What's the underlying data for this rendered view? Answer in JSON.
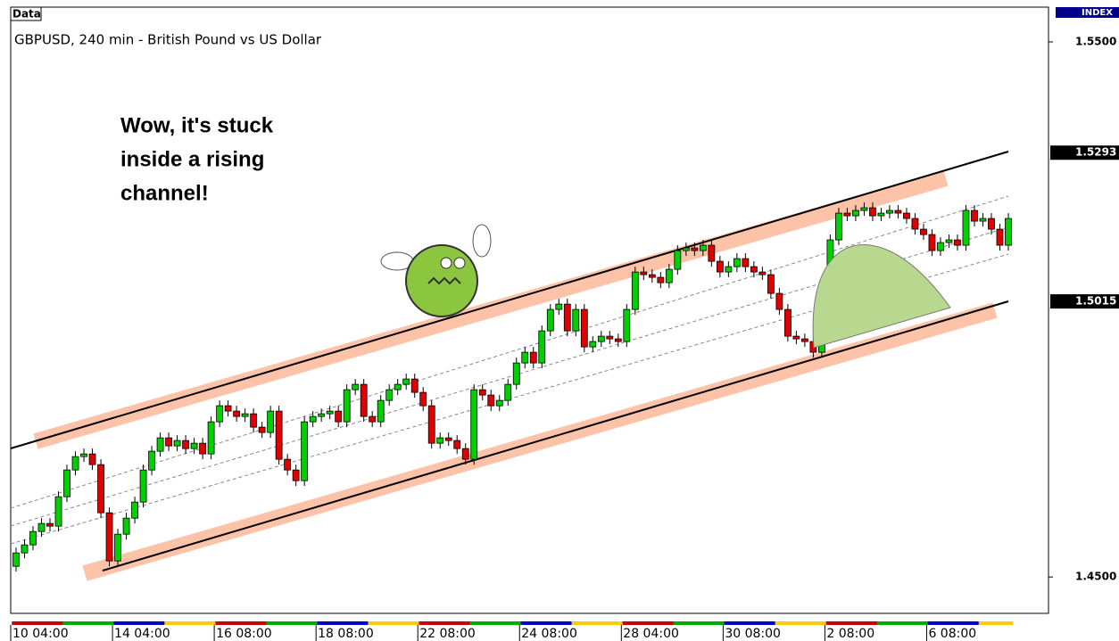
{
  "chart_data": {
    "type": "candlestick",
    "badge": "Data",
    "title": "GBPUSD, 240 min - British Pound vs US Dollar",
    "index_label": "INDEX",
    "annotation": [
      "Wow, it's stuck",
      "inside a rising",
      "channel!"
    ],
    "categories": [
      "10 04:00",
      null,
      null,
      null,
      null,
      null,
      null,
      null,
      null,
      null,
      null,
      null,
      "14 04:00",
      null,
      null,
      null,
      null,
      null,
      null,
      null,
      null,
      null,
      null,
      null,
      "16 08:00",
      null,
      null,
      null,
      null,
      null,
      null,
      null,
      null,
      null,
      null,
      null,
      "18 08:00",
      null,
      null,
      null,
      null,
      null,
      null,
      null,
      null,
      null,
      null,
      null,
      "22 08:00",
      null,
      null,
      null,
      null,
      null,
      null,
      null,
      null,
      null,
      null,
      null,
      "24 08:00",
      null,
      null,
      null,
      null,
      null,
      null,
      null,
      null,
      null,
      null,
      null,
      "28 04:00",
      null,
      null,
      null,
      null,
      null,
      null,
      null,
      null,
      null,
      null,
      null,
      "30 08:00",
      null,
      null,
      null,
      null,
      null,
      null,
      null,
      null,
      null,
      null,
      null,
      "2 08:00",
      null,
      null,
      null,
      null,
      null,
      null,
      null,
      null,
      null,
      null,
      null,
      "6 08:00",
      null,
      null,
      null,
      null,
      null,
      null,
      null,
      null,
      null
    ],
    "open": [
      1.452,
      1.4545,
      1.456,
      1.4585,
      1.46,
      1.4595,
      1.465,
      1.47,
      1.4725,
      1.473,
      1.471,
      1.462,
      1.453,
      1.458,
      1.461,
      1.464,
      1.47,
      1.4735,
      1.476,
      1.4745,
      1.4755,
      1.474,
      1.475,
      1.473,
      1.479,
      1.482,
      1.481,
      1.48,
      1.4805,
      1.478,
      1.477,
      1.481,
      1.472,
      1.47,
      1.468,
      1.479,
      1.48,
      1.4805,
      1.481,
      1.479,
      1.485,
      1.486,
      1.48,
      1.479,
      1.483,
      1.485,
      1.486,
      1.487,
      1.4845,
      1.482,
      1.475,
      1.476,
      1.4755,
      1.474,
      1.472,
      1.485,
      1.484,
      1.482,
      1.483,
      1.486,
      1.49,
      1.492,
      1.49,
      1.496,
      1.5,
      1.501,
      1.496,
      1.5,
      1.493,
      1.494,
      1.495,
      1.4945,
      1.494,
      1.5,
      1.507,
      1.5065,
      1.506,
      1.505,
      1.5075,
      1.511,
      1.5115,
      1.511,
      1.512,
      1.509,
      1.507,
      1.508,
      1.5095,
      1.508,
      1.507,
      1.5065,
      1.503,
      1.5,
      1.495,
      1.4945,
      1.494,
      1.492,
      1.498,
      1.513,
      1.518,
      1.5175,
      1.5185,
      1.519,
      1.5175,
      1.518,
      1.5185,
      1.518,
      1.517,
      1.515,
      1.514,
      1.511,
      1.5125,
      1.513,
      1.512,
      1.5185,
      1.5165,
      1.517,
      1.515,
      1.512
    ],
    "high": [
      1.4555,
      1.457,
      1.4595,
      1.461,
      1.461,
      1.466,
      1.471,
      1.4735,
      1.474,
      1.474,
      1.472,
      1.463,
      1.459,
      1.462,
      1.465,
      1.471,
      1.4745,
      1.477,
      1.477,
      1.4765,
      1.4765,
      1.476,
      1.476,
      1.48,
      1.483,
      1.483,
      1.482,
      1.4815,
      1.4815,
      1.479,
      1.482,
      1.482,
      1.473,
      1.471,
      1.48,
      1.481,
      1.4815,
      1.482,
      1.482,
      1.486,
      1.487,
      1.487,
      1.481,
      1.484,
      1.486,
      1.487,
      1.488,
      1.488,
      1.4855,
      1.483,
      1.477,
      1.477,
      1.4765,
      1.475,
      1.486,
      1.486,
      1.485,
      1.484,
      1.487,
      1.491,
      1.493,
      1.493,
      1.497,
      1.501,
      1.502,
      1.502,
      1.501,
      1.501,
      1.495,
      1.496,
      1.496,
      1.4955,
      1.501,
      1.508,
      1.508,
      1.5075,
      1.507,
      1.5085,
      1.512,
      1.5125,
      1.5125,
      1.513,
      1.513,
      1.51,
      1.509,
      1.5105,
      1.5105,
      1.509,
      1.508,
      1.5075,
      1.504,
      1.501,
      1.496,
      1.4955,
      1.495,
      1.499,
      1.514,
      1.519,
      1.519,
      1.5195,
      1.52,
      1.52,
      1.519,
      1.5195,
      1.5195,
      1.519,
      1.518,
      1.516,
      1.515,
      1.5135,
      1.514,
      1.514,
      1.5195,
      1.5195,
      1.518,
      1.518,
      1.516,
      1.518
    ],
    "low": [
      1.451,
      1.4535,
      1.455,
      1.4575,
      1.4585,
      1.4585,
      1.464,
      1.469,
      1.4715,
      1.47,
      1.461,
      1.452,
      1.452,
      1.457,
      1.46,
      1.463,
      1.469,
      1.4725,
      1.4735,
      1.4735,
      1.473,
      1.473,
      1.472,
      1.472,
      1.478,
      1.48,
      1.479,
      1.479,
      1.477,
      1.476,
      1.476,
      1.471,
      1.469,
      1.467,
      1.467,
      1.478,
      1.479,
      1.4795,
      1.478,
      1.478,
      1.484,
      1.479,
      1.478,
      1.478,
      1.482,
      1.484,
      1.485,
      1.4835,
      1.481,
      1.474,
      1.474,
      1.4745,
      1.473,
      1.471,
      1.471,
      1.483,
      1.481,
      1.481,
      1.482,
      1.485,
      1.489,
      1.489,
      1.489,
      1.495,
      1.499,
      1.495,
      1.495,
      1.492,
      1.492,
      1.493,
      1.4935,
      1.493,
      1.493,
      1.499,
      1.5055,
      1.505,
      1.504,
      1.504,
      1.5065,
      1.51,
      1.51,
      1.51,
      1.508,
      1.506,
      1.506,
      1.507,
      1.507,
      1.506,
      1.5055,
      1.502,
      1.499,
      1.494,
      1.4935,
      1.493,
      1.491,
      1.491,
      1.497,
      1.512,
      1.5165,
      1.5165,
      1.5175,
      1.5165,
      1.5165,
      1.517,
      1.517,
      1.516,
      1.514,
      1.513,
      1.51,
      1.51,
      1.5115,
      1.511,
      1.511,
      1.5155,
      1.5155,
      1.514,
      1.511,
      1.511
    ],
    "close": [
      1.4545,
      1.456,
      1.4585,
      1.46,
      1.4595,
      1.465,
      1.47,
      1.4725,
      1.473,
      1.471,
      1.462,
      1.453,
      1.458,
      1.461,
      1.464,
      1.47,
      1.4735,
      1.476,
      1.4745,
      1.4755,
      1.474,
      1.475,
      1.473,
      1.479,
      1.482,
      1.481,
      1.48,
      1.4805,
      1.478,
      1.477,
      1.481,
      1.472,
      1.47,
      1.468,
      1.479,
      1.48,
      1.4805,
      1.481,
      1.479,
      1.485,
      1.486,
      1.48,
      1.479,
      1.483,
      1.485,
      1.486,
      1.487,
      1.4845,
      1.482,
      1.475,
      1.476,
      1.4755,
      1.474,
      1.472,
      1.485,
      1.484,
      1.482,
      1.483,
      1.486,
      1.49,
      1.492,
      1.49,
      1.496,
      1.5,
      1.501,
      1.496,
      1.5,
      1.493,
      1.494,
      1.495,
      1.4945,
      1.494,
      1.5,
      1.507,
      1.5065,
      1.506,
      1.505,
      1.5075,
      1.511,
      1.5115,
      1.511,
      1.512,
      1.509,
      1.507,
      1.508,
      1.5095,
      1.508,
      1.507,
      1.5065,
      1.503,
      1.5,
      1.495,
      1.4945,
      1.494,
      1.492,
      1.498,
      1.513,
      1.518,
      1.5175,
      1.5185,
      1.519,
      1.5175,
      1.518,
      1.5185,
      1.518,
      1.517,
      1.515,
      1.514,
      1.511,
      1.5125,
      1.513,
      1.512,
      1.5185,
      1.5165,
      1.517,
      1.515,
      1.512,
      1.517
    ],
    "up_color": "#00d000",
    "down_color": "#e00000",
    "ylim": [
      1.4432,
      1.5565
    ],
    "yticks": [
      {
        "value": 1.45,
        "label": "1.4500"
      },
      {
        "value": 1.55,
        "label": "1.5500"
      }
    ],
    "price_markers": [
      1.5293,
      1.5015
    ]
  }
}
